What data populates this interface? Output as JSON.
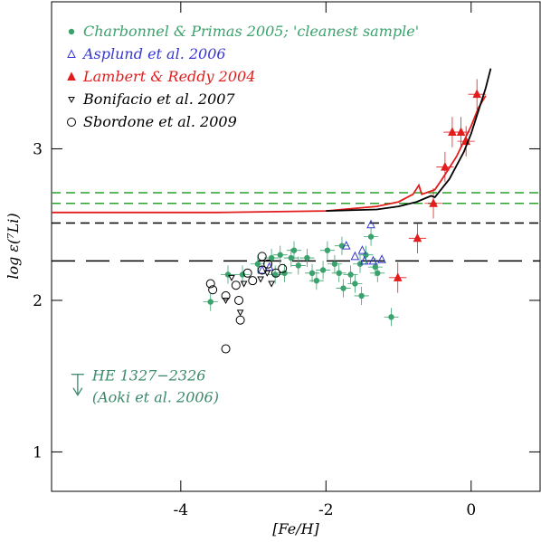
{
  "chart_data": {
    "type": "scatter",
    "xlabel": "[Fe/H]",
    "ylabel": "log ε(⁷Li)",
    "xlim": [
      -5.78,
      0.95
    ],
    "ylim": [
      0.74,
      3.97
    ],
    "xticks": [
      -4,
      -2,
      0
    ],
    "yticks": [
      1,
      2,
      3
    ],
    "series": [
      {
        "name": "Charbonnel & Primas 2005; 'cleanest sample'",
        "color": "#3aa26c",
        "marker": "filled-circle",
        "xerr": 0.1,
        "yerr": 0.06,
        "x": [
          -3.59,
          -3.35,
          -3.15,
          -2.94,
          -2.75,
          -2.63,
          -2.57,
          -2.44,
          -2.38,
          -2.26,
          -2.19,
          -2.13,
          -2.04,
          -1.98,
          -1.88,
          -1.82,
          -1.76,
          -1.66,
          -1.6,
          -1.51,
          -1.45,
          -1.38,
          -1.29,
          -1.1,
          -1.32,
          -2.48,
          -2.7,
          -1.53,
          -1.78
        ],
        "y": [
          1.99,
          2.17,
          2.17,
          2.24,
          2.28,
          2.3,
          2.18,
          2.33,
          2.23,
          2.28,
          2.18,
          2.13,
          2.2,
          2.33,
          2.24,
          2.18,
          2.08,
          2.17,
          2.11,
          2.03,
          2.3,
          2.42,
          2.18,
          1.89,
          2.22,
          2.28,
          2.17,
          2.24,
          2.36
        ]
      },
      {
        "name": "Asplund et al. 2006",
        "color": "#3636d0",
        "marker": "open-triangle",
        "x": [
          -1.72,
          -1.6,
          -1.47,
          -1.35,
          -1.23,
          -1.5,
          -1.38,
          -2.78,
          -2.88
        ],
        "y": [
          2.36,
          2.29,
          2.26,
          2.26,
          2.27,
          2.33,
          2.5,
          2.22,
          2.2
        ]
      },
      {
        "name": "Lambert & Reddy 2004",
        "color": "#e21d1d",
        "marker": "filled-triangle",
        "xerr": 0.12,
        "yerr": 0.1,
        "x": [
          -1.01,
          -0.74,
          -0.52,
          -0.36,
          -0.26,
          -0.14,
          -0.07,
          0.08
        ],
        "y": [
          2.15,
          2.41,
          2.64,
          2.88,
          3.11,
          3.11,
          3.05,
          3.36
        ]
      },
      {
        "name": "Bonifacio et al. 2007",
        "color": "#000000",
        "marker": "open-down-triangle",
        "x": [
          -3.38,
          -3.13,
          -3.3,
          -3.18,
          -2.9,
          -2.81,
          -2.75
        ],
        "y": [
          2.0,
          2.11,
          2.15,
          1.92,
          2.14,
          2.18,
          2.11
        ]
      },
      {
        "name": "Sbordone et al. 2009",
        "color": "#000000",
        "marker": "open-circle",
        "x": [
          -3.59,
          -3.56,
          -3.38,
          -3.24,
          -3.2,
          -3.18,
          -3.08,
          -3.01,
          -2.88,
          -2.88,
          -2.8,
          -2.69,
          -2.6,
          -3.38
        ],
        "y": [
          2.11,
          2.07,
          2.03,
          2.1,
          2.0,
          1.87,
          2.18,
          2.13,
          2.29,
          2.2,
          2.24,
          2.18,
          2.21,
          1.68
        ]
      },
      {
        "type": "line",
        "color": "#e21d1d",
        "x": [
          -5.78,
          -3.5,
          -2.0,
          -1.3,
          -1.0,
          -0.8,
          -0.72,
          -0.68,
          -0.5,
          -0.4,
          -0.2,
          0.0,
          0.1,
          0.2
        ],
        "y": [
          2.58,
          2.58,
          2.59,
          2.62,
          2.65,
          2.7,
          2.76,
          2.7,
          2.73,
          2.8,
          2.95,
          3.15,
          3.27,
          3.35
        ]
      },
      {
        "type": "line",
        "color": "#000000",
        "x": [
          -2.0,
          -1.3,
          -1.0,
          -0.75,
          -0.55,
          -0.5,
          -0.3,
          -0.1,
          0.0,
          0.1,
          0.2,
          0.27
        ],
        "y": [
          2.59,
          2.6,
          2.62,
          2.65,
          2.69,
          2.68,
          2.8,
          2.98,
          3.1,
          3.25,
          3.4,
          3.53
        ]
      }
    ],
    "hlines": [
      {
        "value": 2.71,
        "color": "#2ca02c",
        "style": "dashed"
      },
      {
        "value": 2.64,
        "color": "#2ca02c",
        "style": "dashed"
      },
      {
        "value": 2.51,
        "color": "#000000",
        "style": "dashed"
      },
      {
        "value": 2.26,
        "color": "#000000",
        "style": "longdash"
      }
    ],
    "annotation": {
      "lines": [
        "HE 1327−2326",
        "(Aoki et al. 2006)"
      ],
      "x": -5.42,
      "y": 1.5,
      "color": "#3a8a6a"
    }
  }
}
